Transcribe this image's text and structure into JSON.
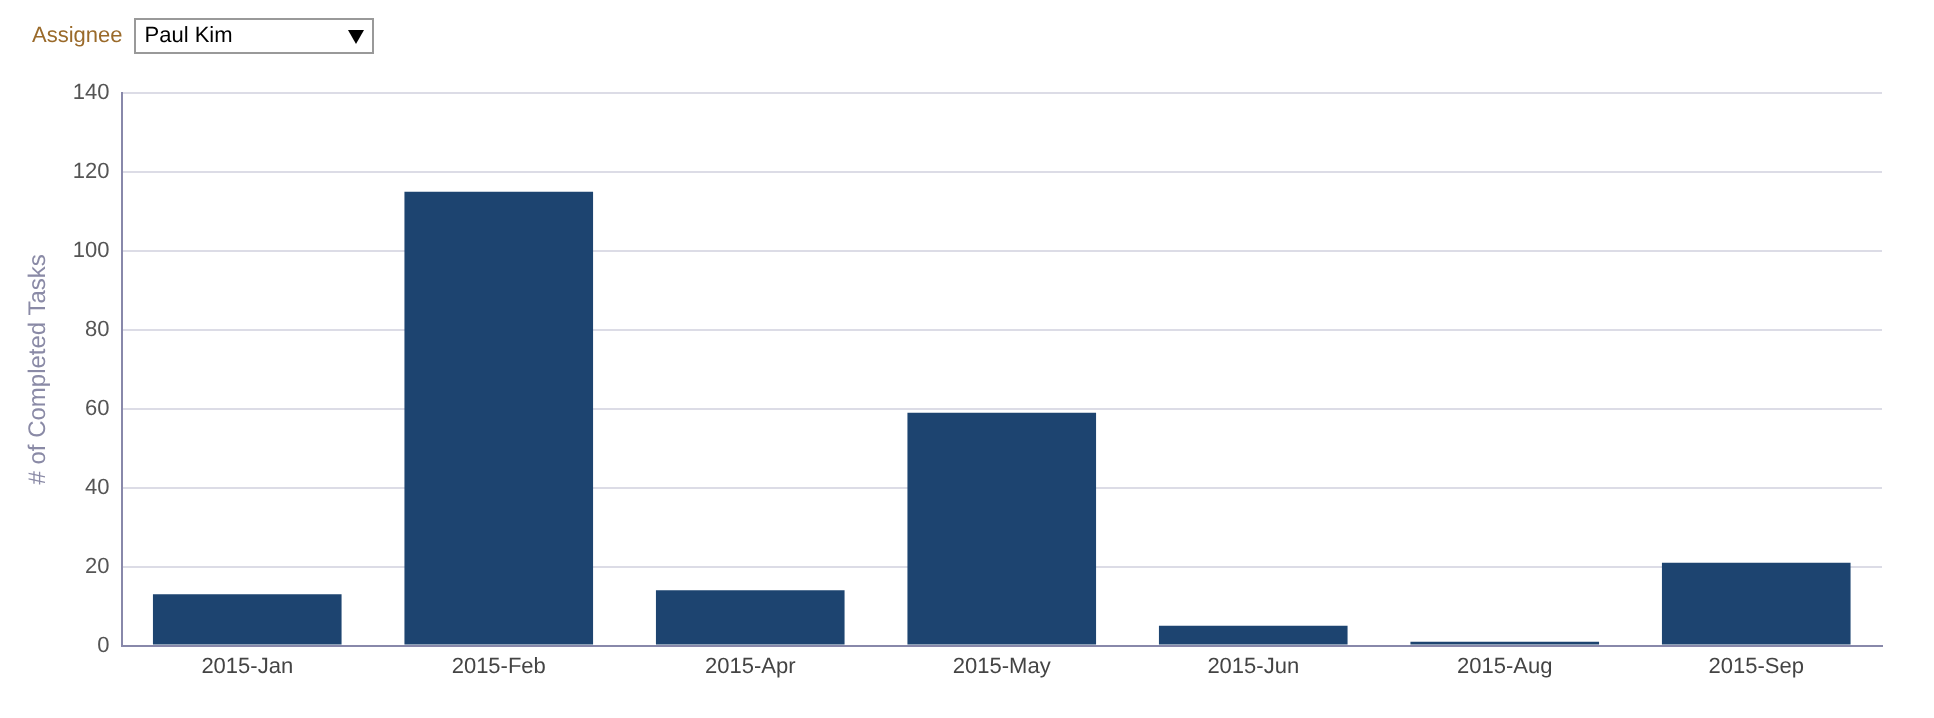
{
  "chart_data": {
    "type": "bar",
    "ylabel": "# of Completed Tasks",
    "annotations": [
      "Assignee",
      "Paul Kim"
    ],
    "categories": [
      "2015-Jan",
      "2015-Feb",
      "2015-Apr",
      "2015-May",
      "2015-Jun",
      "2015-Aug",
      "2015-Sep"
    ],
    "values": [
      13,
      115,
      14,
      59,
      5,
      1,
      21
    ],
    "color": "#1d4470",
    "ylim": [
      0,
      140
    ],
    "yticks": [
      0,
      20,
      40,
      60,
      80,
      100,
      120,
      140
    ],
    "grid": "y",
    "legend": false
  }
}
